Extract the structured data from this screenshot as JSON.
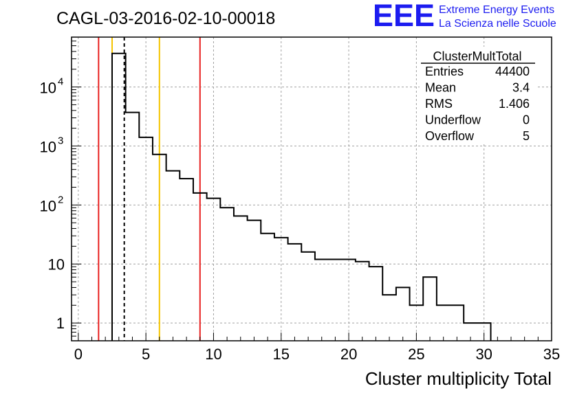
{
  "header": {
    "title": "CAGL-03-2016-02-10-00018",
    "logo_text": "EEE",
    "logo_line1": "Extreme Energy Events",
    "logo_line2": "La Scienza nelle Scuole"
  },
  "stats_box": {
    "title": "ClusterMultTotal",
    "rows": [
      {
        "label": "Entries",
        "value": "44400"
      },
      {
        "label": "Mean",
        "value": "3.4"
      },
      {
        "label": "RMS",
        "value": "1.406"
      },
      {
        "label": "Underflow",
        "value": "0"
      },
      {
        "label": "Overflow",
        "value": "5"
      }
    ]
  },
  "colors": {
    "histogram": "#000000",
    "grid": "#999999",
    "red_line": "#e8201f",
    "yellow_line": "#f5c400",
    "logo": "#1c1cf0"
  },
  "chart_data": {
    "type": "bar",
    "histogram_style": "step",
    "xlabel": "Cluster multiplicity Total",
    "ylabel": "",
    "xlim": [
      -0.5,
      35.0
    ],
    "ylim": [
      0.5,
      70000
    ],
    "y_scale": "log",
    "grid": true,
    "x_ticks": [
      0,
      5,
      10,
      15,
      20,
      25,
      30,
      35
    ],
    "y_ticks": [
      {
        "value": 1,
        "label": "1"
      },
      {
        "value": 10,
        "label": "10"
      },
      {
        "value": 100,
        "label": "10",
        "exp": "2"
      },
      {
        "value": 1000,
        "label": "10",
        "exp": "3"
      },
      {
        "value": 10000,
        "label": "10",
        "exp": "4"
      }
    ],
    "bin_width": 1,
    "bins_from": 2.5,
    "values": [
      37000,
      3700,
      1400,
      720,
      380,
      280,
      160,
      130,
      90,
      65,
      55,
      33,
      28,
      22,
      16,
      12,
      12,
      12,
      11,
      9,
      3,
      4,
      2,
      6,
      2,
      2,
      1,
      1
    ],
    "vertical_lines": [
      {
        "x": 1.5,
        "color": "#e8201f",
        "style": "solid"
      },
      {
        "x": 2.5,
        "color": "#f5c400",
        "style": "solid"
      },
      {
        "x": 3.4,
        "color": "#000000",
        "style": "dashed"
      },
      {
        "x": 6.0,
        "color": "#f5c400",
        "style": "solid"
      },
      {
        "x": 9.0,
        "color": "#e8201f",
        "style": "solid"
      }
    ]
  }
}
